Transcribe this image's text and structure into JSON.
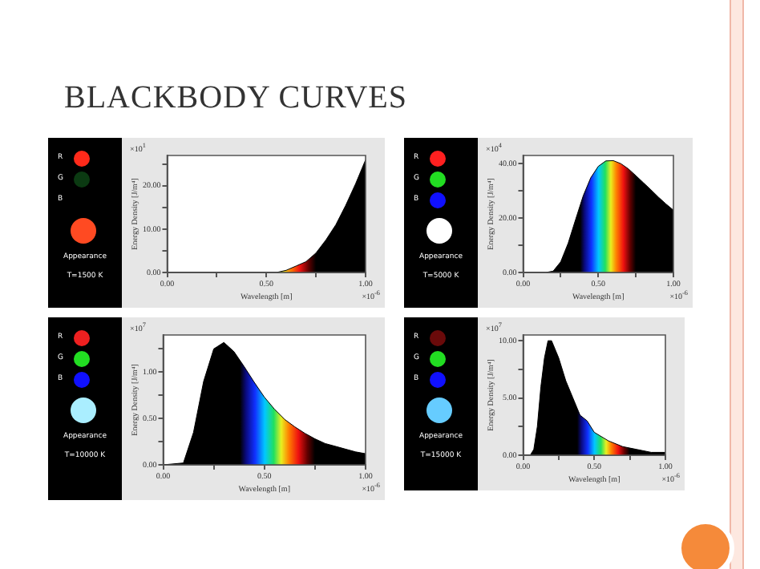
{
  "chart_data": [
    {
      "type": "area",
      "title": "BLACKBODY CURVES",
      "xlabel": "Wavelength [m]",
      "ylabel": "Energy Density [J/m⁴]",
      "color": "#000000",
      "annotations": [
        "R",
        "G",
        "B",
        "Appearance",
        "T=1500 K",
        "×10$^{1}$",
        "×10$^{-6}$"
      ],
      "xlim": [
        0,
        1
      ],
      "xticks": [
        {
          "value": 0,
          "label": "0.00"
        },
        {
          "value": 0.25,
          "label": null
        },
        {
          "value": 0.5,
          "label": "0.50"
        },
        {
          "value": 0.75,
          "label": null
        },
        {
          "value": 1,
          "label": "1.00"
        }
      ],
      "ylim": [
        0,
        27
      ],
      "yticks": [
        {
          "value": 0,
          "label": "0.00"
        },
        {
          "value": 5,
          "label": null
        },
        {
          "value": 10,
          "label": "10.00"
        },
        {
          "value": 15,
          "label": null
        },
        {
          "value": 20,
          "label": "20.00"
        },
        {
          "value": 25,
          "label": null
        }
      ],
      "x": [
        0,
        0.45,
        0.5,
        0.55,
        0.6,
        0.65,
        0.7,
        0.75,
        0.8,
        0.85,
        0.9,
        0.95,
        1
      ],
      "values": [
        0,
        0,
        0,
        0,
        0.5,
        1.5,
        2.5,
        4.5,
        7.5,
        11,
        15.5,
        20.5,
        26
      ]
    },
    {
      "type": "area",
      "xlabel": "Wavelength [m]",
      "ylabel": "Energy Density [J/m⁴]",
      "color": "#000000",
      "annotations": [
        "R",
        "G",
        "B",
        "Appearance",
        "T=5000 K",
        "×10$^{4}$",
        "×10$^{-6}$"
      ],
      "xlim": [
        0,
        1
      ],
      "xticks": [
        {
          "value": 0,
          "label": "0.00"
        },
        {
          "value": 0.25,
          "label": null
        },
        {
          "value": 0.5,
          "label": "0.50"
        },
        {
          "value": 0.75,
          "label": null
        },
        {
          "value": 1,
          "label": "1.00"
        }
      ],
      "ylim": [
        0,
        43
      ],
      "yticks": [
        {
          "value": 0,
          "label": "0.00"
        },
        {
          "value": 10,
          "label": null
        },
        {
          "value": 20,
          "label": "20.00"
        },
        {
          "value": 30,
          "label": null
        },
        {
          "value": 40,
          "label": "40.00"
        }
      ],
      "x": [
        0,
        0.15,
        0.2,
        0.25,
        0.3,
        0.35,
        0.4,
        0.45,
        0.5,
        0.55,
        0.6,
        0.65,
        0.7,
        0.75,
        0.8,
        0.85,
        0.9,
        0.95,
        1
      ],
      "values": [
        0,
        0,
        0.5,
        3.9,
        10.8,
        19.6,
        28.2,
        34.8,
        39,
        41,
        41.1,
        40,
        38.1,
        35.6,
        33,
        30.4,
        27.7,
        25.2,
        22.9
      ]
    },
    {
      "type": "area",
      "xlabel": "Wavelength [m]",
      "ylabel": "Energy Density [J/m⁴]",
      "color": "#000000",
      "annotations": [
        "R",
        "G",
        "B",
        "Appearance",
        "T=10000 K",
        "×10$^{7}$",
        "×10$^{-6}$"
      ],
      "xlim": [
        0,
        1
      ],
      "xticks": [
        {
          "value": 0,
          "label": "0.00"
        },
        {
          "value": 0.25,
          "label": null
        },
        {
          "value": 0.5,
          "label": "0.50"
        },
        {
          "value": 0.75,
          "label": null
        },
        {
          "value": 1,
          "label": "1.00"
        }
      ],
      "ylim": [
        0,
        1.4
      ],
      "yticks": [
        {
          "value": 0,
          "label": "0.00"
        },
        {
          "value": 0.25,
          "label": null
        },
        {
          "value": 0.5,
          "label": "0.50"
        },
        {
          "value": 0.75,
          "label": null
        },
        {
          "value": 1,
          "label": "1.00"
        },
        {
          "value": 1.25,
          "label": null
        }
      ],
      "x": [
        0,
        0.1,
        0.15,
        0.2,
        0.25,
        0.3,
        0.35,
        0.4,
        0.45,
        0.5,
        0.55,
        0.6,
        0.65,
        0.7,
        0.75,
        0.8,
        0.85,
        0.9,
        0.95,
        1
      ],
      "values": [
        0,
        0.02,
        0.35,
        0.9,
        1.25,
        1.32,
        1.22,
        1.06,
        0.89,
        0.73,
        0.6,
        0.49,
        0.41,
        0.34,
        0.28,
        0.23,
        0.2,
        0.17,
        0.14,
        0.12
      ]
    },
    {
      "type": "area",
      "xlabel": "Wavelength [m]",
      "ylabel": "Energy Density [J/m⁴]",
      "color": "#000000",
      "annotations": [
        "R",
        "G",
        "B",
        "Appearance",
        "T=15000 K",
        "×10$^{7}$",
        "×10$^{-6}$"
      ],
      "xlim": [
        0,
        1
      ],
      "xticks": [
        {
          "value": 0,
          "label": "0.00"
        },
        {
          "value": 0.25,
          "label": null
        },
        {
          "value": 0.5,
          "label": "0.50"
        },
        {
          "value": 0.75,
          "label": null
        },
        {
          "value": 1,
          "label": "1.00"
        }
      ],
      "ylim": [
        0,
        10.5
      ],
      "yticks": [
        {
          "value": 0,
          "label": "0.00"
        },
        {
          "value": 2.5,
          "label": null
        },
        {
          "value": 5,
          "label": "5.00"
        },
        {
          "value": 7.5,
          "label": null
        },
        {
          "value": 10,
          "label": "10.00"
        }
      ],
      "x": [
        0,
        0.05,
        0.075,
        0.1,
        0.125,
        0.15,
        0.175,
        0.2,
        0.25,
        0.3,
        0.35,
        0.4,
        0.45,
        0.5,
        0.6,
        0.7,
        0.8,
        0.9,
        1
      ],
      "values": [
        0,
        0,
        0.5,
        2.5,
        6,
        8.5,
        10,
        10,
        8.5,
        6.5,
        5,
        3.5,
        3,
        2,
        1.25,
        0.75,
        0.5,
        0.25,
        0.25
      ]
    }
  ]
}
